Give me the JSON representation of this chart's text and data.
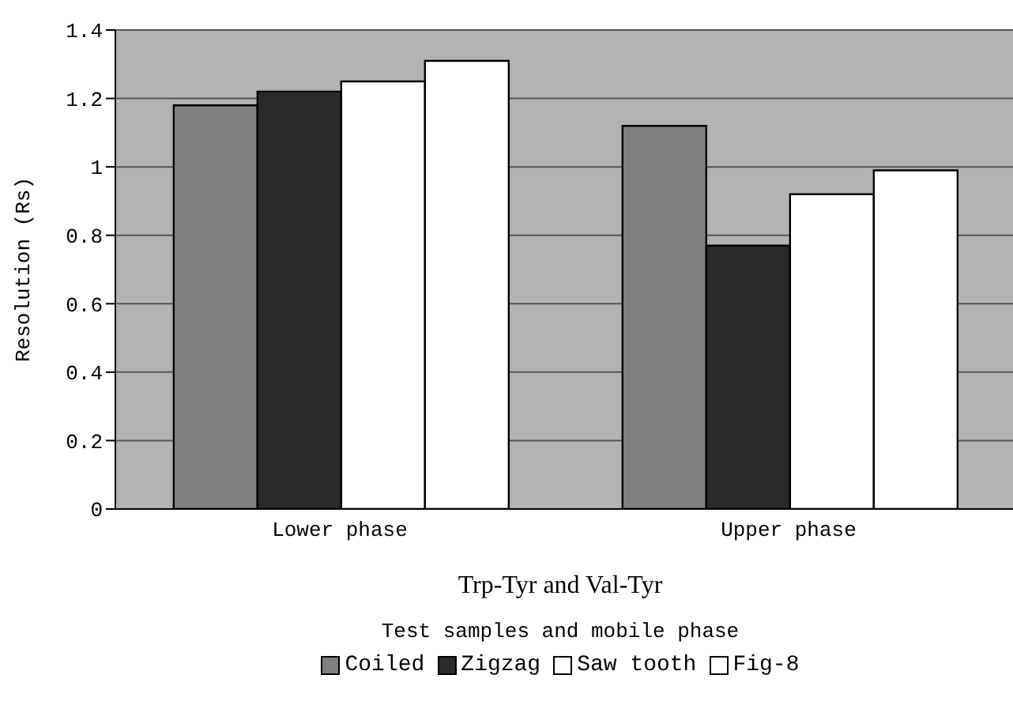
{
  "chart_data": {
    "type": "bar",
    "title": "Trp-Tyr and Val-Tyr",
    "xlabel": "Test samples and mobile phase",
    "ylabel": "Resolution (Rs)",
    "categories": [
      "Lower phase",
      "Upper phase"
    ],
    "series": [
      {
        "name": "Coiled",
        "color": "#808080",
        "values": [
          1.18,
          1.12
        ]
      },
      {
        "name": "Zigzag",
        "color": "#2a2a2a",
        "values": [
          1.22,
          0.77
        ]
      },
      {
        "name": "Saw tooth",
        "color": "#ffffff",
        "values": [
          1.25,
          0.92
        ]
      },
      {
        "name": "Fig-8",
        "color": "#ffffff",
        "values": [
          1.31,
          0.99
        ]
      }
    ],
    "ylim": [
      0,
      1.4
    ],
    "yticks": [
      0,
      0.2,
      0.4,
      0.6,
      0.8,
      1,
      1.2,
      1.4
    ],
    "grid": "y",
    "legend": "bottom"
  }
}
